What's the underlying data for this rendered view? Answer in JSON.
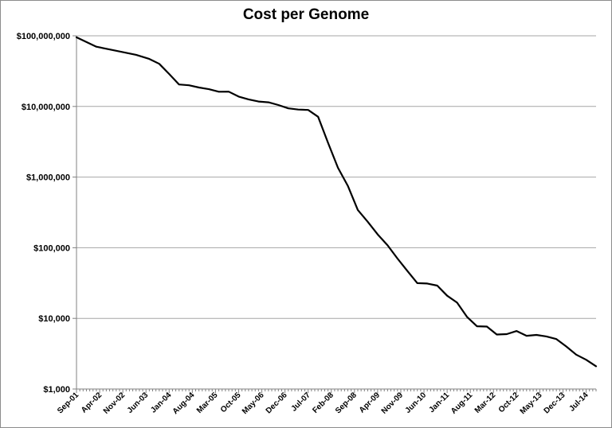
{
  "chart_data": {
    "type": "line",
    "title": "Cost per Genome",
    "y_scale": "log",
    "ylim": [
      1000,
      100000000
    ],
    "y_ticks": [
      {
        "value": 100000000,
        "label": "$100,000,000"
      },
      {
        "value": 10000000,
        "label": "$10,000,000"
      },
      {
        "value": 1000000,
        "label": "$1,000,000"
      },
      {
        "value": 100000,
        "label": "$100,000"
      },
      {
        "value": 10000,
        "label": "$10,000"
      },
      {
        "value": 1000,
        "label": "$1,000"
      }
    ],
    "x_tick_labels": [
      "Sep-01",
      "Apr-02",
      "Nov-02",
      "Jun-03",
      "Jan-04",
      "Aug-04",
      "Mar-05",
      "Oct-05",
      "May-06",
      "Dec-06",
      "Jul-07",
      "Feb-08",
      "Sep-08",
      "Apr-09",
      "Nov-09",
      "Jun-10",
      "Jan-11",
      "Aug-11",
      "Mar-12",
      "Oct-12",
      "May-13",
      "Dec-13",
      "Jul-14"
    ],
    "x_tick_every_months": 7,
    "grid": "horizontal",
    "line_color": "#000000",
    "series": [
      {
        "x": [
          "Sep-01",
          "Mar-02",
          "Sep-02",
          "Mar-03",
          "Jul-03",
          "Oct-03",
          "Jan-04",
          "Apr-04",
          "Jul-04",
          "Oct-04",
          "Jan-05",
          "Apr-05",
          "Jul-05",
          "Oct-05",
          "Jan-06",
          "Apr-06",
          "Jul-06",
          "Oct-06",
          "Jan-07",
          "Apr-07",
          "Jul-07",
          "Oct-07",
          "Jan-08",
          "Apr-08",
          "Jul-08",
          "Oct-08",
          "Jan-09",
          "Apr-09",
          "Jul-09",
          "Oct-09",
          "Jan-10",
          "Apr-10",
          "Jul-10",
          "Oct-10",
          "Jan-11",
          "Apr-11",
          "Jul-11",
          "Oct-11",
          "Jan-12",
          "Apr-12",
          "Jul-12",
          "Oct-12",
          "Jan-13",
          "Apr-13",
          "Jul-13",
          "Oct-13",
          "Jan-14",
          "Apr-14",
          "Jul-14",
          "Oct-14"
        ],
        "values": [
          95263072,
          70175437,
          61448422,
          53751684,
          47000000,
          40157554,
          28780376,
          20442576,
          19934346,
          18519312,
          17534970,
          16159699,
          16180224,
          13801124,
          12585866,
          11732535,
          11455315,
          10474556,
          9408739,
          9047003,
          8927342,
          7147571,
          3063820,
          1352982,
          752080,
          342502,
          232735,
          154714,
          108065,
          70333,
          46774,
          31512,
          31125,
          29092,
          20963,
          16712,
          10497,
          7743,
          7666,
          5901,
          5985,
          6618,
          5671,
          5826,
          5550,
          5096,
          4008,
          3063,
          2600,
          2100
        ]
      }
    ]
  }
}
